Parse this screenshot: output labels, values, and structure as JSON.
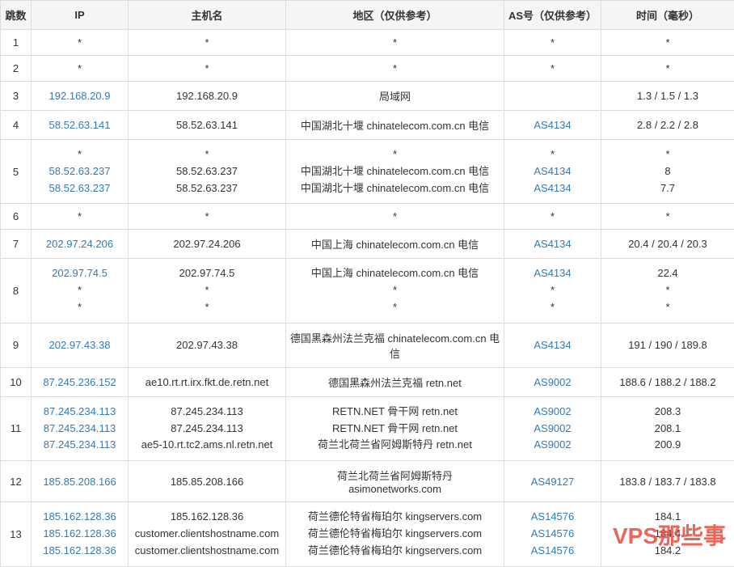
{
  "watermark": "VPS那些事",
  "columns": [
    {
      "key": "hop",
      "label": "跳数"
    },
    {
      "key": "ip",
      "label": "IP"
    },
    {
      "key": "host",
      "label": "主机名"
    },
    {
      "key": "region",
      "label": "地区（仅供参考）"
    },
    {
      "key": "as",
      "label": "AS号（仅供参考）"
    },
    {
      "key": "time",
      "label": "时间（毫秒）"
    }
  ],
  "rows": [
    {
      "hop": "1",
      "ip": [
        "*"
      ],
      "ip_link": [
        false
      ],
      "host": [
        "*"
      ],
      "region": [
        "*"
      ],
      "as": [
        "*"
      ],
      "as_link": [
        false
      ],
      "time": [
        "*"
      ]
    },
    {
      "hop": "2",
      "ip": [
        "*"
      ],
      "ip_link": [
        false
      ],
      "host": [
        "*"
      ],
      "region": [
        "*"
      ],
      "as": [
        "*"
      ],
      "as_link": [
        false
      ],
      "time": [
        "*"
      ]
    },
    {
      "hop": "3",
      "ip": [
        "192.168.20.9"
      ],
      "ip_link": [
        true
      ],
      "host": [
        "192.168.20.9"
      ],
      "region": [
        "局域网"
      ],
      "as": [
        ""
      ],
      "as_link": [
        false
      ],
      "time": [
        "1.3 / 1.5 / 1.3"
      ]
    },
    {
      "hop": "4",
      "ip": [
        "58.52.63.141"
      ],
      "ip_link": [
        true
      ],
      "host": [
        "58.52.63.141"
      ],
      "region": [
        "中国湖北十堰 chinatelecom.com.cn 电信"
      ],
      "as": [
        "AS4134"
      ],
      "as_link": [
        true
      ],
      "time": [
        "2.8 / 2.2 / 2.8"
      ]
    },
    {
      "hop": "5",
      "ip": [
        "*",
        "58.52.63.237",
        "58.52.63.237"
      ],
      "ip_link": [
        false,
        true,
        true
      ],
      "host": [
        "*",
        "58.52.63.237",
        "58.52.63.237"
      ],
      "region": [
        "*",
        "中国湖北十堰 chinatelecom.com.cn 电信",
        "中国湖北十堰 chinatelecom.com.cn 电信"
      ],
      "as": [
        "*",
        "AS4134",
        "AS4134"
      ],
      "as_link": [
        false,
        true,
        true
      ],
      "time": [
        "*",
        "8",
        "7.7"
      ]
    },
    {
      "hop": "6",
      "ip": [
        "*"
      ],
      "ip_link": [
        false
      ],
      "host": [
        "*"
      ],
      "region": [
        "*"
      ],
      "as": [
        "*"
      ],
      "as_link": [
        false
      ],
      "time": [
        "*"
      ]
    },
    {
      "hop": "7",
      "ip": [
        "202.97.24.206"
      ],
      "ip_link": [
        true
      ],
      "host": [
        "202.97.24.206"
      ],
      "region": [
        "中国上海 chinatelecom.com.cn 电信"
      ],
      "as": [
        "AS4134"
      ],
      "as_link": [
        true
      ],
      "time": [
        "20.4 / 20.4 / 20.3"
      ]
    },
    {
      "hop": "8",
      "ip": [
        "202.97.74.5",
        "*",
        "*"
      ],
      "ip_link": [
        true,
        false,
        false
      ],
      "host": [
        "202.97.74.5",
        "*",
        "*"
      ],
      "region": [
        "中国上海 chinatelecom.com.cn 电信",
        "*",
        "*"
      ],
      "as": [
        "AS4134",
        "*",
        "*"
      ],
      "as_link": [
        true,
        false,
        false
      ],
      "time": [
        "22.4",
        "*",
        "*"
      ]
    },
    {
      "hop": "9",
      "ip": [
        "202.97.43.38"
      ],
      "ip_link": [
        true
      ],
      "host": [
        "202.97.43.38"
      ],
      "region": [
        "德国黑森州法兰克福 chinatelecom.com.cn 电信"
      ],
      "as": [
        "AS4134"
      ],
      "as_link": [
        true
      ],
      "time": [
        "191 / 190 / 189.8"
      ]
    },
    {
      "hop": "10",
      "ip": [
        "87.245.236.152"
      ],
      "ip_link": [
        true
      ],
      "host": [
        "ae10.rt.rt.irx.fkt.de.retn.net"
      ],
      "region": [
        "德国黑森州法兰克福 retn.net"
      ],
      "as": [
        "AS9002"
      ],
      "as_link": [
        true
      ],
      "time": [
        "188.6 / 188.2 / 188.2"
      ]
    },
    {
      "hop": "11",
      "ip": [
        "87.245.234.113",
        "87.245.234.113",
        "87.245.234.113"
      ],
      "ip_link": [
        true,
        true,
        true
      ],
      "host": [
        "87.245.234.113",
        "87.245.234.113",
        "ae5-10.rt.tc2.ams.nl.retn.net"
      ],
      "region": [
        "RETN.NET 骨干网 retn.net",
        "RETN.NET 骨干网 retn.net",
        "荷兰北荷兰省阿姆斯特丹 retn.net"
      ],
      "as": [
        "AS9002",
        "AS9002",
        "AS9002"
      ],
      "as_link": [
        true,
        true,
        true
      ],
      "time": [
        "208.3",
        "208.1",
        "200.9"
      ]
    },
    {
      "hop": "12",
      "ip": [
        "185.85.208.166"
      ],
      "ip_link": [
        true
      ],
      "host": [
        "185.85.208.166"
      ],
      "region": [
        "荷兰北荷兰省阿姆斯特丹 asimonetworks.com"
      ],
      "as": [
        "AS49127"
      ],
      "as_link": [
        true
      ],
      "time": [
        "183.8 / 183.7 / 183.8"
      ]
    },
    {
      "hop": "13",
      "ip": [
        "185.162.128.36",
        "185.162.128.36",
        "185.162.128.36"
      ],
      "ip_link": [
        true,
        true,
        true
      ],
      "host": [
        "185.162.128.36",
        "customer.clientshostname.com",
        "customer.clientshostname.com"
      ],
      "region": [
        "荷兰德伦特省梅珀尔 kingservers.com",
        "荷兰德伦特省梅珀尔 kingservers.com",
        "荷兰德伦特省梅珀尔 kingservers.com"
      ],
      "as": [
        "AS14576",
        "AS14576",
        "AS14576"
      ],
      "as_link": [
        true,
        true,
        true
      ],
      "time": [
        "184.1",
        "184.4",
        "184.2"
      ]
    }
  ]
}
